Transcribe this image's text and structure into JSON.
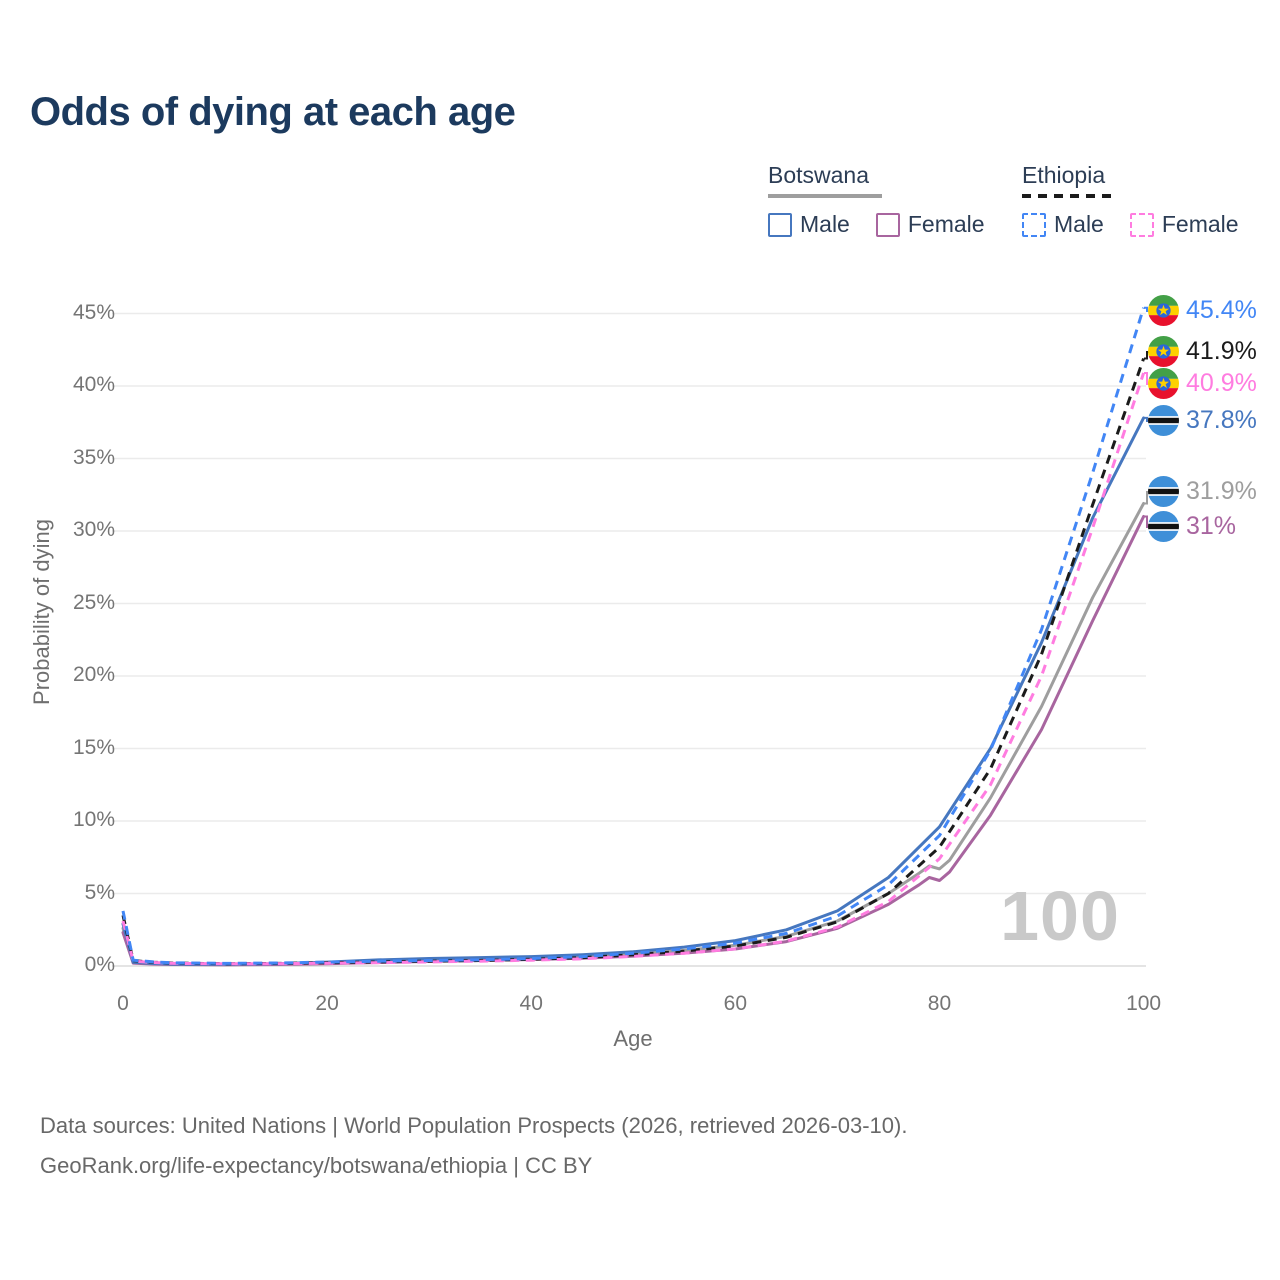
{
  "title": "Odds of dying at each age",
  "legend": {
    "groups": [
      {
        "country": "Botswana",
        "line_style": "solid",
        "items": [
          {
            "label": "Male"
          },
          {
            "label": "Female"
          }
        ]
      },
      {
        "country": "Ethiopia",
        "line_style": "dashed",
        "items": [
          {
            "label": "Male"
          },
          {
            "label": "Female"
          }
        ]
      }
    ]
  },
  "axes": {
    "x_title": "Age",
    "y_title": "Probability of dying"
  },
  "watermark": "100",
  "end_labels": [
    {
      "country": "Ethiopia",
      "sex": "Male",
      "value": "45.4%",
      "color": "#4286f5",
      "flag_ref": "#flag-ethiopia"
    },
    {
      "country": "Ethiopia",
      "sex": "Both sexes",
      "value": "41.9%",
      "color": "#1b1b1b",
      "flag_ref": "#flag-ethiopia"
    },
    {
      "country": "Ethiopia",
      "sex": "Female",
      "value": "40.9%",
      "color": "#ff7ce0",
      "flag_ref": "#flag-ethiopia"
    },
    {
      "country": "Botswana",
      "sex": "Male",
      "value": "37.8%",
      "color": "#4677bf",
      "flag_ref": "#flag-botswana"
    },
    {
      "country": "Botswana",
      "sex": "Both sexes",
      "value": "31.9%",
      "color": "#9e9e9e",
      "flag_ref": "#flag-botswana"
    },
    {
      "country": "Botswana",
      "sex": "Female",
      "value": "31%",
      "color": "#a8659f",
      "flag_ref": "#flag-botswana"
    }
  ],
  "footer": {
    "line1": "Data sources: United Nations | World Population Prospects (2026, retrieved 2026-03-10).",
    "line2": "GeoRank.org/life-expectancy/botswana/ethiopia | CC BY"
  },
  "chart_data": {
    "type": "line",
    "title": "Odds of dying at each age",
    "xlabel": "Age",
    "ylabel": "Probability of dying",
    "xlim": [
      0,
      100
    ],
    "ylim_pct": [
      0,
      47
    ],
    "x_ticks": [
      0,
      20,
      40,
      60,
      80,
      100
    ],
    "y_ticks_pct": [
      0,
      5,
      10,
      15,
      20,
      25,
      30,
      35,
      40,
      45
    ],
    "y_tick_labels": [
      "0%",
      "5%",
      "10%",
      "15%",
      "20%",
      "25%",
      "30%",
      "35%",
      "40%",
      "45%"
    ],
    "grid": "horizontal",
    "legend_position": "top-right",
    "hover_age": 100,
    "series": [
      {
        "name": "Ethiopia Male",
        "country": "Ethiopia",
        "sex": "male",
        "line": "dashed",
        "color": "#4286f5",
        "end_value_pct": 45.4,
        "points": [
          [
            0,
            3.8
          ],
          [
            1,
            0.4
          ],
          [
            3,
            0.28
          ],
          [
            5,
            0.22
          ],
          [
            10,
            0.18
          ],
          [
            15,
            0.21
          ],
          [
            20,
            0.27
          ],
          [
            25,
            0.33
          ],
          [
            30,
            0.38
          ],
          [
            35,
            0.43
          ],
          [
            40,
            0.52
          ],
          [
            45,
            0.65
          ],
          [
            50,
            0.88
          ],
          [
            55,
            1.18
          ],
          [
            60,
            1.58
          ],
          [
            65,
            2.25
          ],
          [
            70,
            3.45
          ],
          [
            75,
            5.6
          ],
          [
            80,
            9.0
          ],
          [
            85,
            14.9
          ],
          [
            90,
            23.2
          ],
          [
            95,
            34.0
          ],
          [
            100,
            45.4
          ]
        ]
      },
      {
        "name": "Ethiopia Both sexes",
        "country": "Ethiopia",
        "sex": "both",
        "line": "dashed",
        "color": "#1b1b1b",
        "end_value_pct": 41.9,
        "points": [
          [
            0,
            3.5
          ],
          [
            1,
            0.37
          ],
          [
            3,
            0.26
          ],
          [
            5,
            0.2
          ],
          [
            10,
            0.16
          ],
          [
            15,
            0.18
          ],
          [
            20,
            0.23
          ],
          [
            25,
            0.28
          ],
          [
            30,
            0.33
          ],
          [
            35,
            0.38
          ],
          [
            40,
            0.46
          ],
          [
            45,
            0.57
          ],
          [
            50,
            0.77
          ],
          [
            55,
            1.03
          ],
          [
            60,
            1.38
          ],
          [
            65,
            1.98
          ],
          [
            70,
            3.05
          ],
          [
            75,
            5.0
          ],
          [
            80,
            8.2
          ],
          [
            85,
            13.6
          ],
          [
            90,
            21.5
          ],
          [
            95,
            31.8
          ],
          [
            100,
            41.9
          ]
        ]
      },
      {
        "name": "Ethiopia Female",
        "country": "Ethiopia",
        "sex": "female",
        "line": "dashed",
        "color": "#ff7ce0",
        "end_value_pct": 40.9,
        "points": [
          [
            0,
            3.1
          ],
          [
            1,
            0.34
          ],
          [
            3,
            0.24
          ],
          [
            5,
            0.18
          ],
          [
            10,
            0.15
          ],
          [
            15,
            0.16
          ],
          [
            20,
            0.19
          ],
          [
            25,
            0.23
          ],
          [
            30,
            0.28
          ],
          [
            35,
            0.33
          ],
          [
            40,
            0.4
          ],
          [
            45,
            0.5
          ],
          [
            50,
            0.66
          ],
          [
            55,
            0.88
          ],
          [
            60,
            1.18
          ],
          [
            65,
            1.72
          ],
          [
            70,
            2.68
          ],
          [
            75,
            4.45
          ],
          [
            80,
            7.4
          ],
          [
            85,
            12.5
          ],
          [
            90,
            20.0
          ],
          [
            95,
            30.2
          ],
          [
            100,
            40.9
          ]
        ]
      },
      {
        "name": "Botswana Male",
        "country": "Botswana",
        "sex": "male",
        "line": "solid",
        "color": "#4677bf",
        "end_value_pct": 37.8,
        "points": [
          [
            0,
            2.9
          ],
          [
            1,
            0.26
          ],
          [
            3,
            0.17
          ],
          [
            5,
            0.13
          ],
          [
            10,
            0.11
          ],
          [
            15,
            0.16
          ],
          [
            20,
            0.27
          ],
          [
            25,
            0.42
          ],
          [
            30,
            0.52
          ],
          [
            35,
            0.58
          ],
          [
            40,
            0.65
          ],
          [
            45,
            0.78
          ],
          [
            50,
            0.98
          ],
          [
            55,
            1.3
          ],
          [
            60,
            1.75
          ],
          [
            65,
            2.5
          ],
          [
            70,
            3.8
          ],
          [
            75,
            6.1
          ],
          [
            80,
            9.6
          ],
          [
            85,
            15.0
          ],
          [
            90,
            22.3
          ],
          [
            95,
            30.9
          ],
          [
            100,
            37.8
          ]
        ]
      },
      {
        "name": "Botswana Both sexes",
        "country": "Botswana",
        "sex": "both",
        "line": "solid",
        "color": "#9e9e9e",
        "end_value_pct": 31.9,
        "points": [
          [
            0,
            2.6
          ],
          [
            1,
            0.23
          ],
          [
            3,
            0.15
          ],
          [
            5,
            0.11
          ],
          [
            10,
            0.09
          ],
          [
            15,
            0.13
          ],
          [
            20,
            0.21
          ],
          [
            25,
            0.32
          ],
          [
            30,
            0.42
          ],
          [
            35,
            0.48
          ],
          [
            40,
            0.54
          ],
          [
            45,
            0.64
          ],
          [
            50,
            0.81
          ],
          [
            55,
            1.07
          ],
          [
            60,
            1.43
          ],
          [
            65,
            2.05
          ],
          [
            70,
            3.1
          ],
          [
            75,
            5.0
          ],
          [
            78,
            6.4
          ],
          [
            79,
            6.9
          ],
          [
            80,
            6.7
          ],
          [
            81,
            7.3
          ],
          [
            85,
            11.6
          ],
          [
            90,
            17.9
          ],
          [
            95,
            25.4
          ],
          [
            100,
            31.9
          ]
        ]
      },
      {
        "name": "Botswana Female",
        "country": "Botswana",
        "sex": "female",
        "line": "solid",
        "color": "#a8659f",
        "end_value_pct": 31.0,
        "points": [
          [
            0,
            2.3
          ],
          [
            1,
            0.2
          ],
          [
            3,
            0.13
          ],
          [
            5,
            0.1
          ],
          [
            10,
            0.08
          ],
          [
            15,
            0.1
          ],
          [
            20,
            0.16
          ],
          [
            25,
            0.24
          ],
          [
            30,
            0.32
          ],
          [
            35,
            0.38
          ],
          [
            40,
            0.45
          ],
          [
            45,
            0.54
          ],
          [
            50,
            0.68
          ],
          [
            55,
            0.89
          ],
          [
            60,
            1.17
          ],
          [
            65,
            1.68
          ],
          [
            70,
            2.6
          ],
          [
            75,
            4.25
          ],
          [
            78,
            5.6
          ],
          [
            79,
            6.1
          ],
          [
            80,
            5.9
          ],
          [
            81,
            6.5
          ],
          [
            85,
            10.4
          ],
          [
            90,
            16.3
          ],
          [
            95,
            23.8
          ],
          [
            100,
            31.0
          ]
        ]
      }
    ]
  }
}
